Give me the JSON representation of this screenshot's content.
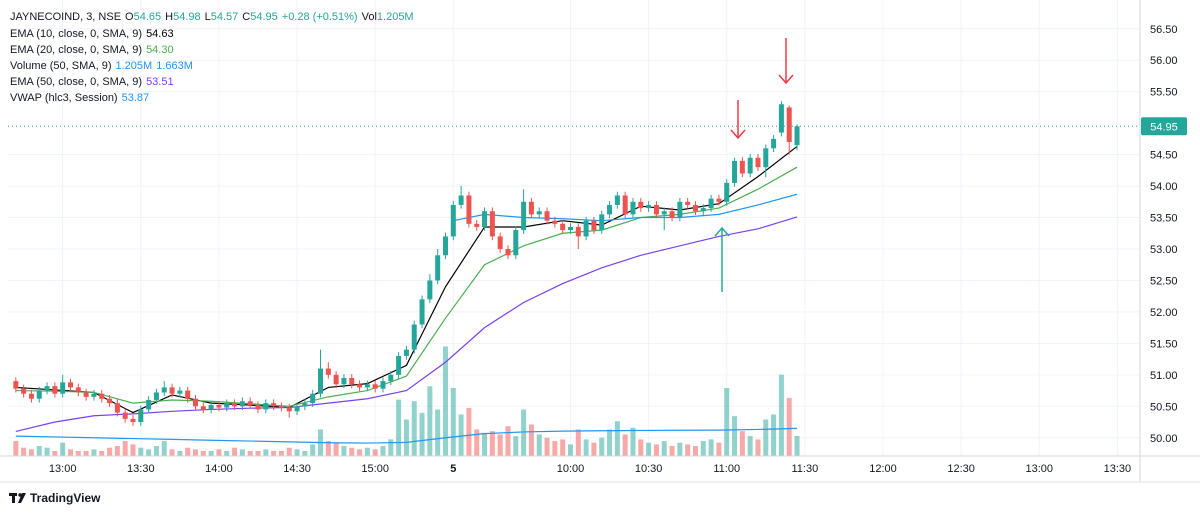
{
  "chart_data": {
    "type": "candlestick",
    "symbol": "JAYNECOIND, 3, NSE",
    "header_labels": {
      "open": "O",
      "high": "H",
      "low": "L",
      "close": "C",
      "volume": "Vol"
    },
    "change": "+0.28 (+0.51%)",
    "volume_label": "1.205M",
    "brand": "TradingView",
    "up_color": "#26a69a",
    "down_color": "#ef5350",
    "grid": true,
    "xlim": [
      -1,
      143.9
    ],
    "ylim": [
      49.71,
      56.83
    ],
    "volume_lim": [
      0,
      27000000
    ],
    "yticks": [
      {
        "value": 50,
        "label": "50.00"
      },
      {
        "value": 50.5,
        "label": "50.50"
      },
      {
        "value": 51,
        "label": "51.00"
      },
      {
        "value": 51.5,
        "label": "51.50"
      },
      {
        "value": 52,
        "label": "52.00"
      },
      {
        "value": 52.5,
        "label": "52.50"
      },
      {
        "value": 53,
        "label": "53.00"
      },
      {
        "value": 53.5,
        "label": "53.50"
      },
      {
        "value": 54,
        "label": "54.00"
      },
      {
        "value": 54.5,
        "label": "54.50"
      },
      {
        "value": 55,
        "label": "55.00"
      },
      {
        "value": 55.5,
        "label": "55.50"
      },
      {
        "value": 56,
        "label": "56.00"
      },
      {
        "value": 56.5,
        "label": "56.50"
      }
    ],
    "xticks": [
      {
        "value": 6,
        "label": "13:00"
      },
      {
        "value": 16,
        "label": "13:30"
      },
      {
        "value": 26,
        "label": "14:00"
      },
      {
        "value": 36,
        "label": "14:30"
      },
      {
        "value": 46,
        "label": "15:00"
      },
      {
        "value": 56,
        "label": "5"
      },
      {
        "value": 71,
        "label": "10:00"
      },
      {
        "value": 81,
        "label": "10:30"
      },
      {
        "value": 91,
        "label": "11:00"
      },
      {
        "value": 101,
        "label": "11:30"
      },
      {
        "value": 111,
        "label": "12:00"
      },
      {
        "value": 121,
        "label": "12:30"
      },
      {
        "value": 131,
        "label": "13:00"
      },
      {
        "value": 141,
        "label": "13:30"
      }
    ],
    "open": [
      50.9,
      50.78,
      50.7,
      50.62,
      50.75,
      50.82,
      50.7,
      50.88,
      50.8,
      50.72,
      50.65,
      50.7,
      50.62,
      50.55,
      50.4,
      50.3,
      50.25,
      50.45,
      50.6,
      50.72,
      50.8,
      50.7,
      50.75,
      50.62,
      50.5,
      50.45,
      50.52,
      50.48,
      50.55,
      50.5,
      50.58,
      50.52,
      50.45,
      50.55,
      50.5,
      50.48,
      50.42,
      50.5,
      50.55,
      50.7,
      51.1,
      51,
      50.85,
      50.95,
      50.85,
      50.8,
      50.85,
      50.78,
      50.9,
      51,
      51.3,
      51.4,
      51.8,
      52.2,
      52.5,
      52.9,
      53.2,
      53.7,
      53.85,
      53.4,
      53.35,
      53.6,
      53.2,
      53,
      52.9,
      53.3,
      53.75,
      53.55,
      53.6,
      53.45,
      53.4,
      53.3,
      53.35,
      53.2,
      53.45,
      53.3,
      53.55,
      53.7,
      53.85,
      53.55,
      53.75,
      53.65,
      53.7,
      53.55,
      53.6,
      53.5,
      53.75,
      53.7,
      53.6,
      53.65,
      53.8,
      53.75,
      54.05,
      54.4,
      54.2,
      54.45,
      54.3,
      54.6,
      54.85,
      55.25,
      54.65
    ],
    "high": [
      50.96,
      50.84,
      50.76,
      50.81,
      50.88,
      50.88,
      51,
      50.94,
      50.86,
      50.78,
      50.76,
      50.76,
      50.68,
      50.61,
      50.46,
      50.36,
      50.51,
      50.66,
      50.78,
      50.9,
      50.86,
      50.81,
      50.81,
      50.68,
      50.56,
      50.58,
      50.58,
      50.61,
      50.61,
      50.64,
      50.64,
      50.58,
      50.61,
      50.61,
      50.56,
      50.54,
      50.56,
      50.61,
      50.76,
      51.4,
      51.2,
      51.06,
      51.01,
      51.01,
      50.91,
      50.91,
      50.91,
      50.96,
      51.06,
      51.36,
      51.46,
      51.86,
      52.26,
      52.6,
      53,
      53.26,
      53.76,
      54,
      53.91,
      53.46,
      53.66,
      53.66,
      53.26,
      53.06,
      53.36,
      53.95,
      53.81,
      53.66,
      53.66,
      53.51,
      53.46,
      53.41,
      53.41,
      53.51,
      53.51,
      53.61,
      53.76,
      53.91,
      53.91,
      53.81,
      53.81,
      53.76,
      53.76,
      53.66,
      53.66,
      53.81,
      53.81,
      53.76,
      53.71,
      53.86,
      53.86,
      54.11,
      54.45,
      54.46,
      54.51,
      54.51,
      54.66,
      54.81,
      55.35,
      55.28,
      54.98
    ],
    "low": [
      50.72,
      50.64,
      50.56,
      50.56,
      50.69,
      50.64,
      50.64,
      50.74,
      50.66,
      50.59,
      50.59,
      50.56,
      50.49,
      50.34,
      50.24,
      50.19,
      50.19,
      50.39,
      50.54,
      50.66,
      50.64,
      50.64,
      50.56,
      50.44,
      50.39,
      50.39,
      50.42,
      50.42,
      50.44,
      50.44,
      50.46,
      50.39,
      50.39,
      50.44,
      50.42,
      50.32,
      50.36,
      50.44,
      50.49,
      50.64,
      50.94,
      50.79,
      50.79,
      50.79,
      50.74,
      50.74,
      50.72,
      50.72,
      50.84,
      50.94,
      51.24,
      51.34,
      51.74,
      52.14,
      52.44,
      52.84,
      53.14,
      53.64,
      53.34,
      53.29,
      53.29,
      53.14,
      52.94,
      52.84,
      52.84,
      53.24,
      53.49,
      53.49,
      53.39,
      53.34,
      53.24,
      53.24,
      53,
      53.14,
      53.24,
      53.24,
      53.49,
      53.64,
      53.49,
      53.49,
      53.59,
      53.59,
      53.49,
      53.3,
      53.44,
      53.44,
      53.64,
      53.54,
      53.54,
      53.59,
      53.69,
      53.69,
      53.99,
      54.14,
      54.14,
      54.24,
      54.14,
      54.54,
      54.79,
      54.5,
      54.57
    ],
    "close": [
      50.78,
      50.7,
      50.62,
      50.75,
      50.82,
      50.7,
      50.88,
      50.8,
      50.72,
      50.65,
      50.7,
      50.62,
      50.55,
      50.4,
      50.3,
      50.25,
      50.45,
      50.6,
      50.72,
      50.8,
      50.7,
      50.75,
      50.62,
      50.5,
      50.45,
      50.52,
      50.48,
      50.55,
      50.5,
      50.58,
      50.52,
      50.45,
      50.55,
      50.5,
      50.48,
      50.42,
      50.5,
      50.55,
      50.7,
      51.1,
      51,
      50.85,
      50.95,
      50.85,
      50.8,
      50.85,
      50.78,
      50.9,
      51,
      51.3,
      51.4,
      51.8,
      52.2,
      52.5,
      52.9,
      53.2,
      53.7,
      53.85,
      53.4,
      53.35,
      53.6,
      53.2,
      53,
      52.9,
      53.3,
      53.75,
      53.55,
      53.6,
      53.45,
      53.4,
      53.3,
      53.35,
      53.2,
      53.45,
      53.3,
      53.55,
      53.7,
      53.85,
      53.55,
      53.75,
      53.65,
      53.7,
      53.55,
      53.6,
      53.5,
      53.75,
      53.7,
      53.6,
      53.65,
      53.8,
      53.75,
      54.05,
      54.4,
      54.2,
      54.45,
      54.3,
      54.6,
      54.75,
      55.3,
      54.7,
      54.95
    ],
    "volume": [
      900000,
      500000,
      400000,
      600000,
      500000,
      300000,
      800000,
      400000,
      300000,
      300000,
      400000,
      300000,
      500000,
      600000,
      900000,
      700000,
      500000,
      400000,
      600000,
      900000,
      400000,
      300000,
      500000,
      400000,
      300000,
      300000,
      400000,
      300000,
      500000,
      400000,
      300000,
      300000,
      400000,
      300000,
      300000,
      500000,
      400000,
      300000,
      700000,
      1600000,
      900000,
      800000,
      600000,
      500000,
      400000,
      500000,
      400000,
      600000,
      1000000,
      3400000,
      2200000,
      3300000,
      2600000,
      4200000,
      2800000,
      6600000,
      4100000,
      2500000,
      2900000,
      1600000,
      1400000,
      1500000,
      1300000,
      1800000,
      1200000,
      2800000,
      1900000,
      1300000,
      1100000,
      900000,
      1000000,
      700000,
      1600000,
      1000000,
      800000,
      1100000,
      1600000,
      2100000,
      1300000,
      1700000,
      1000000,
      800000,
      700000,
      900000,
      600000,
      800000,
      700000,
      600000,
      900000,
      1000000,
      800000,
      4100000,
      2400000,
      1500000,
      1200000,
      1000000,
      2200000,
      2500000,
      4900000,
      3500000,
      1205000
    ],
    "indicators": [
      {
        "name": "EMA (10, close, 0, SMA, 9)",
        "color": "#000000",
        "pane": "price",
        "value_label": "54.63",
        "x": [
          0,
          5,
          10,
          15,
          20,
          25,
          30,
          35,
          40,
          45,
          50,
          55,
          60,
          65,
          70,
          75,
          80,
          85,
          90,
          95,
          100
        ],
        "values": [
          50.8,
          50.76,
          50.72,
          50.4,
          50.68,
          50.55,
          50.52,
          50.48,
          50.8,
          50.86,
          51.15,
          52.4,
          53.35,
          53.35,
          53.45,
          53.38,
          53.68,
          53.62,
          53.72,
          54.15,
          54.63
        ]
      },
      {
        "name": "EMA (20, close, 0, SMA, 9)",
        "color": "#4caf50",
        "pane": "price",
        "value_label": "54.30",
        "x": [
          0,
          5,
          10,
          15,
          20,
          25,
          30,
          35,
          40,
          45,
          50,
          55,
          60,
          65,
          70,
          75,
          80,
          85,
          90,
          95,
          100
        ],
        "values": [
          50.75,
          50.74,
          50.72,
          50.55,
          50.6,
          50.58,
          50.54,
          50.5,
          50.65,
          50.75,
          50.98,
          51.9,
          52.75,
          53.05,
          53.25,
          53.3,
          53.5,
          53.55,
          53.65,
          53.95,
          54.3
        ]
      },
      {
        "name": "Volume (50, SMA, 9)",
        "color": "#2196f3",
        "pane": "volume",
        "value_label": "1.663M",
        "x": [
          0,
          5,
          10,
          15,
          20,
          25,
          30,
          35,
          40,
          45,
          50,
          55,
          60,
          65,
          70,
          75,
          80,
          85,
          90,
          95,
          100
        ],
        "values": [
          1200000,
          1150000,
          1100000,
          1050000,
          1000000,
          950000,
          900000,
          850000,
          800000,
          780000,
          820000,
          1100000,
          1350000,
          1450000,
          1500000,
          1520000,
          1540000,
          1550000,
          1560000,
          1600000,
          1663000
        ]
      },
      {
        "name": "EMA (50, close, 0, SMA, 9)",
        "color": "#7b3ff2",
        "pane": "price",
        "value_label": "53.51",
        "x": [
          0,
          5,
          10,
          15,
          20,
          25,
          30,
          35,
          40,
          45,
          50,
          55,
          60,
          65,
          70,
          75,
          80,
          85,
          90,
          95,
          100
        ],
        "values": [
          50.1,
          50.25,
          50.35,
          50.38,
          50.42,
          50.45,
          50.47,
          50.48,
          50.55,
          50.62,
          50.75,
          51.2,
          51.75,
          52.15,
          52.45,
          52.7,
          52.9,
          53.05,
          53.2,
          53.32,
          53.51
        ]
      },
      {
        "name": "VWAP (hlc3, Session)",
        "color": "#2196f3",
        "pane": "price",
        "value_label": "53.87",
        "x": [
          56,
          60,
          65,
          70,
          75,
          80,
          85,
          90,
          95,
          100
        ],
        "values": [
          53.45,
          53.55,
          53.5,
          53.48,
          53.45,
          53.5,
          53.5,
          53.55,
          53.7,
          53.87
        ]
      }
    ]
  }
}
